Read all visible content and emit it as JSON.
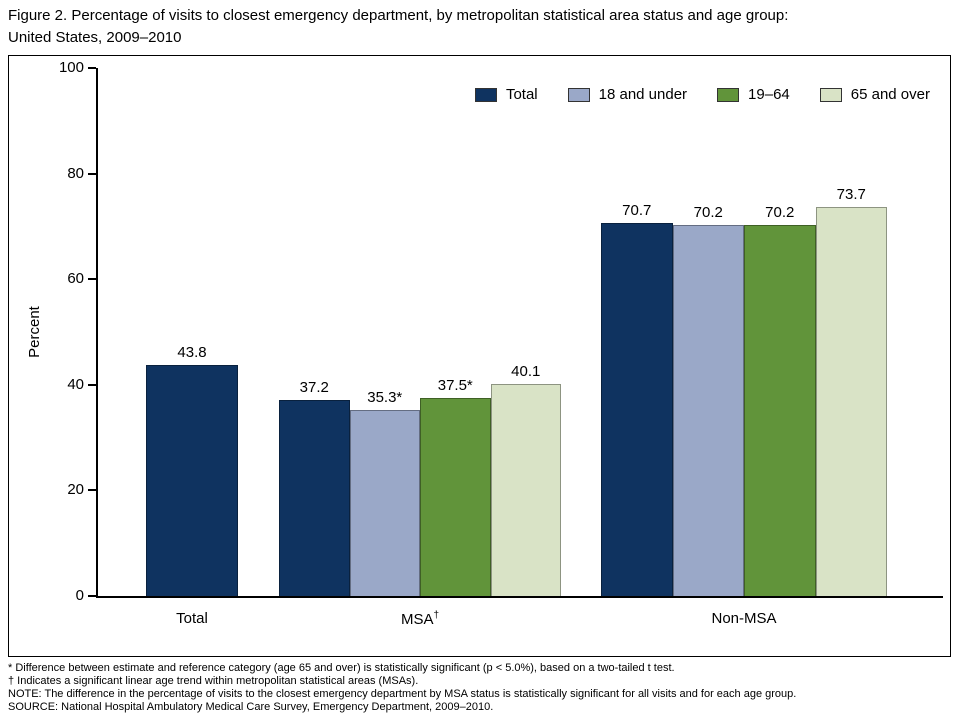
{
  "title": {
    "line1": "Figure 2. Percentage of visits to closest emergency department, by metropolitan statistical area status and age group:",
    "line2": "United States, 2009–2010"
  },
  "chart_data": {
    "type": "bar",
    "title": "Percentage of visits to closest emergency department, by metropolitan statistical area status and age group: United States, 2009–2010",
    "xlabel": "",
    "ylabel": "Percent",
    "ylim": [
      0,
      100
    ],
    "yticks": [
      0,
      20,
      40,
      60,
      80,
      100
    ],
    "grid": false,
    "legend_position": "top-right-inside",
    "legend": [
      {
        "label": "Total",
        "color": "#0f3360"
      },
      {
        "label": "18 and under",
        "color": "#9aa8c8"
      },
      {
        "label": "19–64",
        "color": "#61943a"
      },
      {
        "label": "65 and over",
        "color": "#d9e3c6"
      }
    ],
    "categories": [
      "Total",
      "MSA†",
      "Non-MSA"
    ],
    "groups": [
      {
        "category": "Total",
        "sup": "",
        "bars": [
          {
            "series": "Total",
            "value": 43.8,
            "label": "43.8"
          }
        ]
      },
      {
        "category": "MSA",
        "sup": "†",
        "bars": [
          {
            "series": "Total",
            "value": 37.2,
            "label": "37.2"
          },
          {
            "series": "18 and under",
            "value": 35.3,
            "label": "35.3*"
          },
          {
            "series": "19–64",
            "value": 37.5,
            "label": "37.5*"
          },
          {
            "series": "65 and over",
            "value": 40.1,
            "label": "40.1"
          }
        ]
      },
      {
        "category": "Non-MSA",
        "sup": "",
        "bars": [
          {
            "series": "Total",
            "value": 70.7,
            "label": "70.7"
          },
          {
            "series": "18 and under",
            "value": 70.2,
            "label": "70.2"
          },
          {
            "series": "19–64",
            "value": 70.2,
            "label": "70.2"
          },
          {
            "series": "65 and over",
            "value": 73.7,
            "label": "73.7"
          }
        ]
      }
    ]
  },
  "footnotes": [
    "* Difference between estimate and reference category (age 65 and over) is statistically significant (p < 5.0%), based on a two-tailed t test.",
    "† Indicates a significant linear age trend within metropolitan statistical areas (MSAs).",
    "NOTE: The difference in the percentage of visits to the closest emergency department by MSA status is statistically significant for all visits and for each age group.",
    "SOURCE: National Hospital Ambulatory Medical Care Survey, Emergency Department, 2009–2010."
  ]
}
